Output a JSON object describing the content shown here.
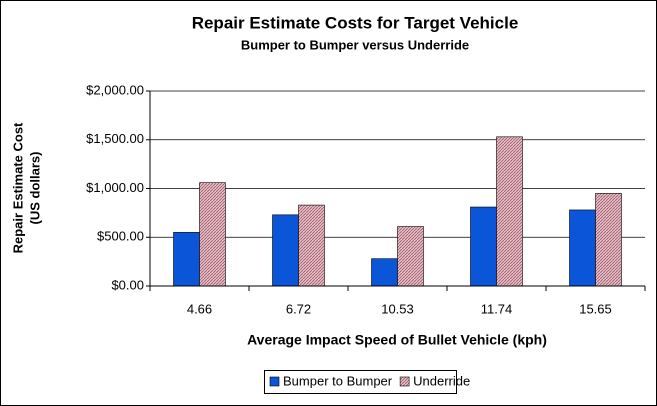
{
  "chart_data": {
    "type": "bar",
    "title": "Repair Estimate Costs for Target Vehicle",
    "subtitle": "Bumper to Bumper versus Underride",
    "ylabel": [
      "Repair Estimate Cost",
      "(US dollars)"
    ],
    "xlabel": "Average Impact Speed of Bullet Vehicle (kph)",
    "categories": [
      "4.66",
      "6.72",
      "10.53",
      "11.74",
      "15.65"
    ],
    "series": [
      {
        "name": "Bumper to Bumper",
        "color": "#0a55d8",
        "values": [
          550,
          730,
          280,
          810,
          780
        ]
      },
      {
        "name": "Underride",
        "color": "#e8c0c8",
        "values": [
          1060,
          830,
          610,
          1530,
          950
        ]
      }
    ],
    "ylim": [
      0,
      2000
    ],
    "yticks": [
      {
        "value": 0,
        "label": "$0.00"
      },
      {
        "value": 500,
        "label": "$500.00"
      },
      {
        "value": 1000,
        "label": "$1,000.00"
      },
      {
        "value": 1500,
        "label": "$1,500.00"
      },
      {
        "value": 2000,
        "label": "$2,000.00"
      }
    ],
    "grid": true,
    "legend": "bottom"
  }
}
